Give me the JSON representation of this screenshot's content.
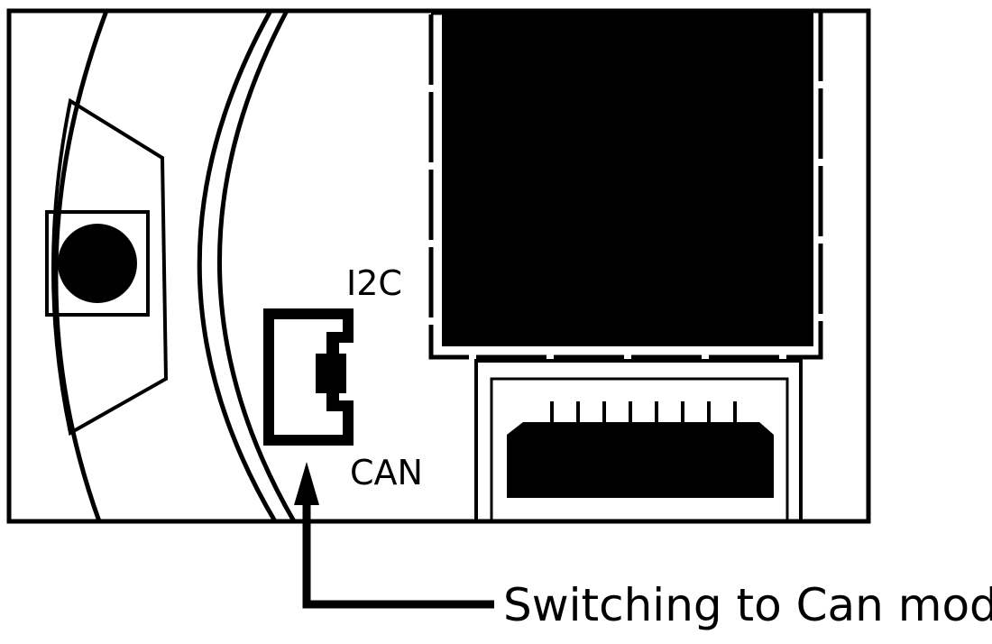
{
  "labels": {
    "i2c": "I2C",
    "can": "CAN",
    "callout": "Switching to Can mode"
  },
  "colors": {
    "stroke": "#000000",
    "fill": "#000000",
    "background": "#ffffff"
  }
}
